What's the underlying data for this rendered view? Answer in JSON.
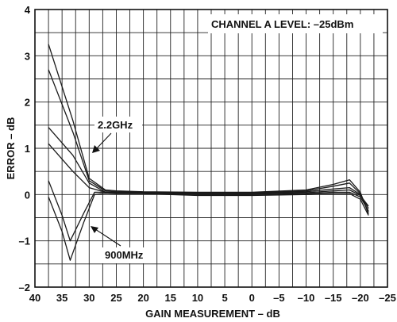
{
  "chart_data": {
    "type": "line",
    "title": "",
    "xlabel": "GAIN MEASUREMENT – dB",
    "ylabel": "ERROR – dB",
    "xlim": [
      40,
      -25
    ],
    "ylim": [
      -2,
      4
    ],
    "x_ticks": [
      40,
      35,
      30,
      25,
      20,
      15,
      10,
      5,
      0,
      -5,
      -10,
      -15,
      -20,
      -25
    ],
    "x_tick_labels": [
      "40",
      "35",
      "30",
      "25",
      "20",
      "15",
      "10",
      "5",
      "0",
      "–5",
      "–10",
      "–15",
      "–20",
      "–25"
    ],
    "y_ticks": [
      -2,
      -1,
      0,
      1,
      2,
      3,
      4
    ],
    "y_tick_labels": [
      "–2",
      "–1",
      "0",
      "1",
      "2",
      "3",
      "4"
    ],
    "grid": true,
    "annotations": [
      {
        "text": "CHANNEL A LEVEL: –25dBm"
      },
      {
        "text": "2.2GHz"
      },
      {
        "text": "900MHz"
      }
    ],
    "series": [
      {
        "x": [
          37.5,
          33,
          30,
          27,
          25,
          20,
          10,
          0,
          -10,
          -15,
          -18,
          -20,
          -21.5
        ],
        "y": [
          3.25,
          1.6,
          0.35,
          0.1,
          0.08,
          0.06,
          0.05,
          0.05,
          0.1,
          0.22,
          0.32,
          0.05,
          -0.42
        ]
      },
      {
        "x": [
          37.5,
          33,
          30,
          27,
          25,
          20,
          10,
          0,
          -10,
          -15,
          -18,
          -20,
          -21.5
        ],
        "y": [
          2.7,
          1.35,
          0.3,
          0.08,
          0.06,
          0.05,
          0.04,
          0.04,
          0.08,
          0.18,
          0.25,
          0.02,
          -0.38
        ]
      },
      {
        "x": [
          37.5,
          33,
          30,
          27,
          25,
          20,
          10,
          0,
          -10,
          -15,
          -18,
          -20,
          -21.5
        ],
        "y": [
          1.45,
          0.85,
          0.25,
          0.05,
          0.05,
          0.04,
          0.03,
          0.03,
          0.06,
          0.12,
          0.15,
          0.0,
          -0.3
        ]
      },
      {
        "x": [
          37.5,
          33,
          30,
          27,
          25,
          20,
          10,
          0,
          -10,
          -15,
          -18,
          -20,
          -21.5
        ],
        "y": [
          1.1,
          0.5,
          0.15,
          0.05,
          0.04,
          0.04,
          0.02,
          0.02,
          0.04,
          0.08,
          0.1,
          -0.02,
          -0.25
        ]
      },
      {
        "x": [
          37.5,
          35,
          33.5,
          31,
          29,
          27,
          25,
          20,
          10,
          0,
          -10,
          -15,
          -18,
          -20,
          -21.5
        ],
        "y": [
          0.3,
          -0.45,
          -1.0,
          -0.4,
          0.05,
          0.05,
          0.03,
          0.03,
          0.0,
          0.0,
          0.02,
          0.05,
          0.05,
          -0.05,
          -0.35
        ]
      },
      {
        "x": [
          37.5,
          35,
          33.5,
          31,
          29,
          27,
          25,
          20,
          10,
          0,
          -10,
          -15,
          -18,
          -20,
          -21.5
        ],
        "y": [
          -0.05,
          -0.8,
          -1.42,
          -0.6,
          0.0,
          0.03,
          0.02,
          0.02,
          -0.02,
          -0.02,
          0.0,
          0.02,
          0.02,
          -0.1,
          -0.45
        ]
      }
    ]
  }
}
